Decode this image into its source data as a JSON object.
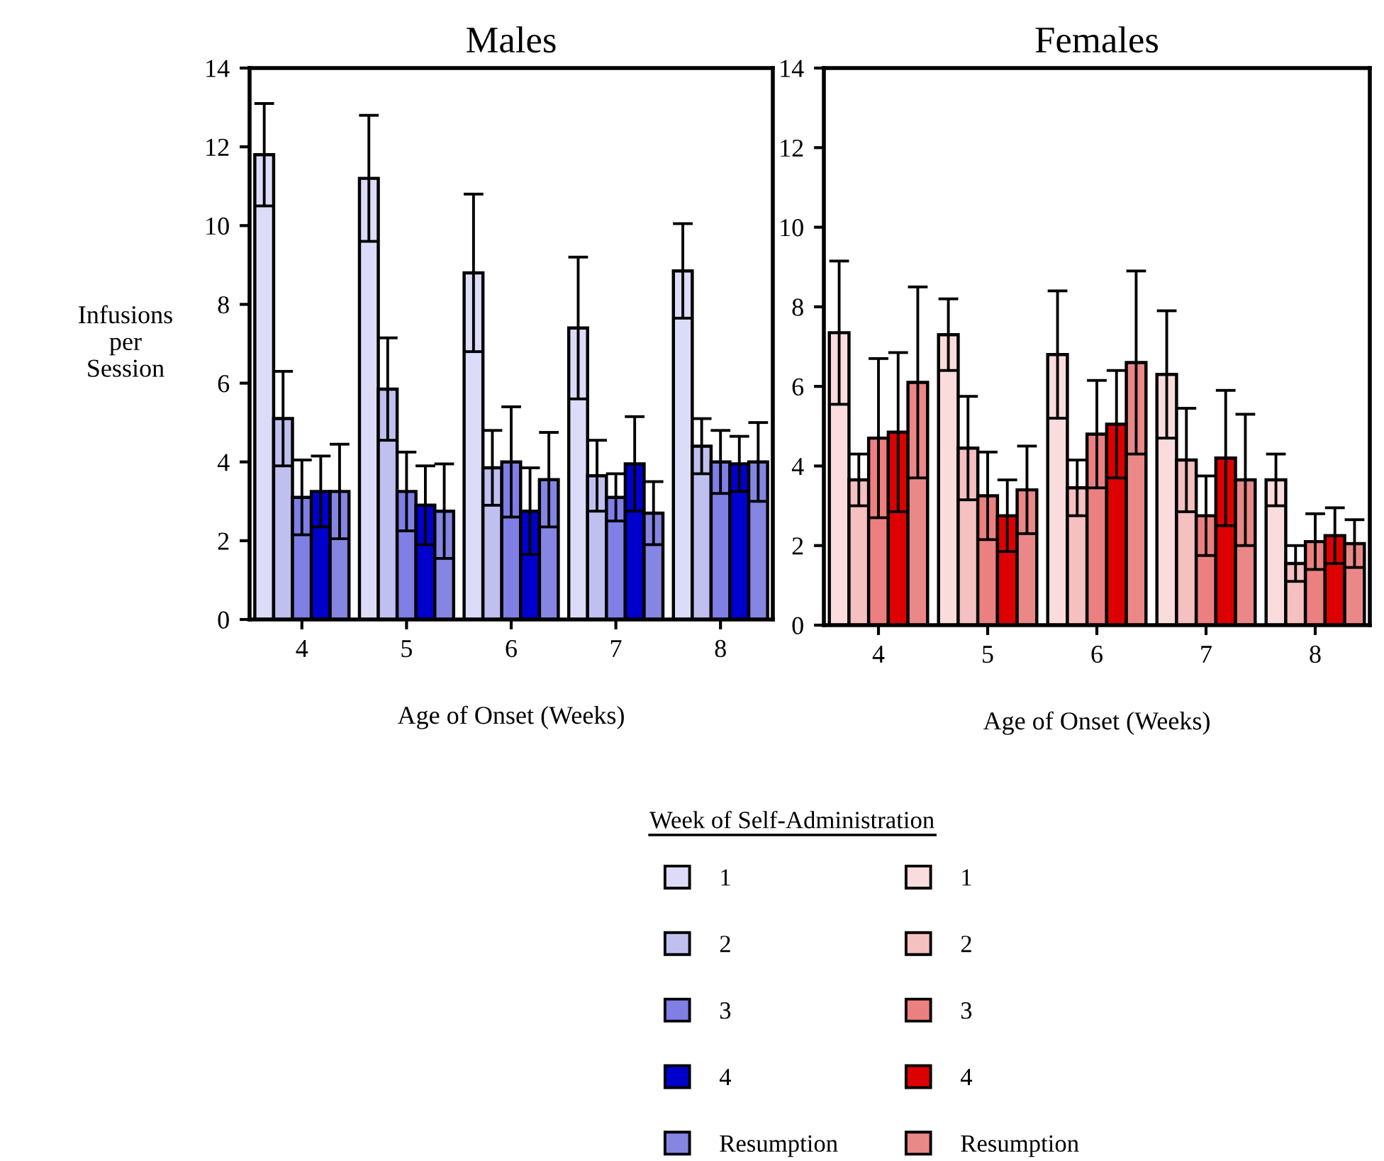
{
  "chart_data": [
    {
      "type": "bar",
      "title": "Males",
      "xlabel": "Age of Onset (Weeks)",
      "ylabel": "Infusions\nper\nSession",
      "legend_title": "Week of Self-Administration",
      "legend": "bottom",
      "grid": false,
      "categories": [
        "4",
        "5",
        "6",
        "7",
        "8"
      ],
      "ylim": [
        0,
        14
      ],
      "yticks": [
        0,
        2,
        4,
        6,
        8,
        10,
        12,
        14
      ],
      "series": [
        {
          "name": "1",
          "color": "#dcdcf8",
          "values": [
            11.8,
            11.2,
            8.8,
            7.4,
            8.85
          ],
          "errors": [
            1.3,
            1.6,
            2.0,
            1.8,
            1.2
          ]
        },
        {
          "name": "2",
          "color": "#c0c0f0",
          "values": [
            5.1,
            5.85,
            3.85,
            3.65,
            4.4
          ],
          "errors": [
            1.2,
            1.3,
            0.95,
            0.9,
            0.7
          ]
        },
        {
          "name": "3",
          "color": "#7f7fe6",
          "values": [
            3.1,
            3.25,
            4.0,
            3.1,
            4.0
          ],
          "errors": [
            0.95,
            1.0,
            1.4,
            0.6,
            0.8
          ]
        },
        {
          "name": "4",
          "color": "#0000cc",
          "values": [
            3.25,
            2.9,
            2.75,
            3.95,
            3.95
          ],
          "errors": [
            0.9,
            1.0,
            1.1,
            1.2,
            0.7
          ]
        },
        {
          "name": "Resumption",
          "color": "#8585e2",
          "values": [
            3.25,
            2.75,
            3.55,
            2.7,
            4.0
          ],
          "errors": [
            1.2,
            1.2,
            1.2,
            0.8,
            1.0
          ]
        }
      ]
    },
    {
      "type": "bar",
      "title": "Females",
      "xlabel": "Age of Onset (Weeks)",
      "legend": "bottom",
      "grid": false,
      "categories": [
        "4",
        "5",
        "6",
        "7",
        "8"
      ],
      "ylim": [
        0,
        14
      ],
      "yticks": [
        0,
        2,
        4,
        6,
        8,
        10,
        12,
        14
      ],
      "series": [
        {
          "name": "1",
          "color": "#fbdcdc",
          "values": [
            7.35,
            7.3,
            6.8,
            6.3,
            3.65
          ],
          "errors": [
            1.8,
            0.9,
            1.6,
            1.6,
            0.65
          ]
        },
        {
          "name": "2",
          "color": "#f5c0c0",
          "values": [
            3.65,
            4.45,
            3.45,
            4.15,
            1.55
          ],
          "errors": [
            0.65,
            1.3,
            0.7,
            1.3,
            0.45
          ]
        },
        {
          "name": "3",
          "color": "#ec8080",
          "values": [
            4.7,
            3.25,
            4.8,
            2.75,
            2.1
          ],
          "errors": [
            2.0,
            1.1,
            1.35,
            1.0,
            0.7
          ]
        },
        {
          "name": "4",
          "color": "#dd0000",
          "values": [
            4.85,
            2.75,
            5.05,
            4.2,
            2.25
          ],
          "errors": [
            2.0,
            0.9,
            1.35,
            1.7,
            0.7
          ]
        },
        {
          "name": "Resumption",
          "color": "#ea8888",
          "values": [
            6.1,
            3.4,
            6.6,
            3.65,
            2.05
          ],
          "errors": [
            2.4,
            1.1,
            2.3,
            1.65,
            0.6
          ]
        }
      ]
    }
  ]
}
